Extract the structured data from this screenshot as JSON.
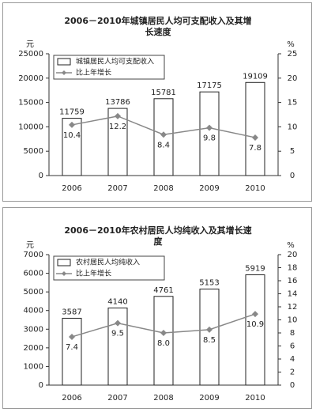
{
  "chart_data": [
    {
      "type": "bar",
      "title": "2006－2010年城镇居民人均可支配收入及其增长速度",
      "ylabel": "元",
      "y2label": "%",
      "categories": [
        "2006",
        "2007",
        "2008",
        "2009",
        "2010"
      ],
      "series": [
        {
          "name": "城镇居民人均可支配收入",
          "type": "bar",
          "color": "#ffffff",
          "values": [
            11759,
            13786,
            15781,
            17175,
            19109
          ]
        },
        {
          "name": "比上年增长",
          "type": "line",
          "axis": "y2",
          "color": "#888888",
          "values": [
            10.4,
            12.2,
            8.4,
            9.8,
            7.8
          ]
        }
      ],
      "ylim": [
        0,
        25000
      ],
      "yticks": [
        0,
        5000,
        10000,
        15000,
        20000,
        25000
      ],
      "y2lim": [
        0,
        25
      ],
      "y2ticks": [
        0,
        5,
        10,
        15,
        20,
        25
      ],
      "legend": "upper left",
      "grid": false
    },
    {
      "type": "bar",
      "title": "2006－2010年农村居民人均纯收入及其增长速度",
      "ylabel": "元",
      "y2label": "%",
      "categories": [
        "2006",
        "2007",
        "2008",
        "2009",
        "2010"
      ],
      "series": [
        {
          "name": "农村居民人均纯收入",
          "type": "bar",
          "color": "#ffffff",
          "values": [
            3587,
            4140,
            4761,
            5153,
            5919
          ]
        },
        {
          "name": "比上年增长",
          "type": "line",
          "axis": "y2",
          "color": "#888888",
          "values": [
            7.4,
            9.5,
            8,
            8.5,
            10.9
          ],
          "value_labels": [
            "7.4",
            "9.5",
            "8.0",
            "8.5",
            "10.9"
          ]
        }
      ],
      "ylim": [
        0,
        7000
      ],
      "yticks": [
        0,
        1000,
        2000,
        3000,
        4000,
        5000,
        6000,
        7000
      ],
      "y2lim": [
        0,
        20
      ],
      "y2ticks": [
        0,
        2,
        4,
        6,
        8,
        10,
        12,
        14,
        16,
        18,
        20
      ],
      "legend": "upper left",
      "grid": false
    }
  ]
}
